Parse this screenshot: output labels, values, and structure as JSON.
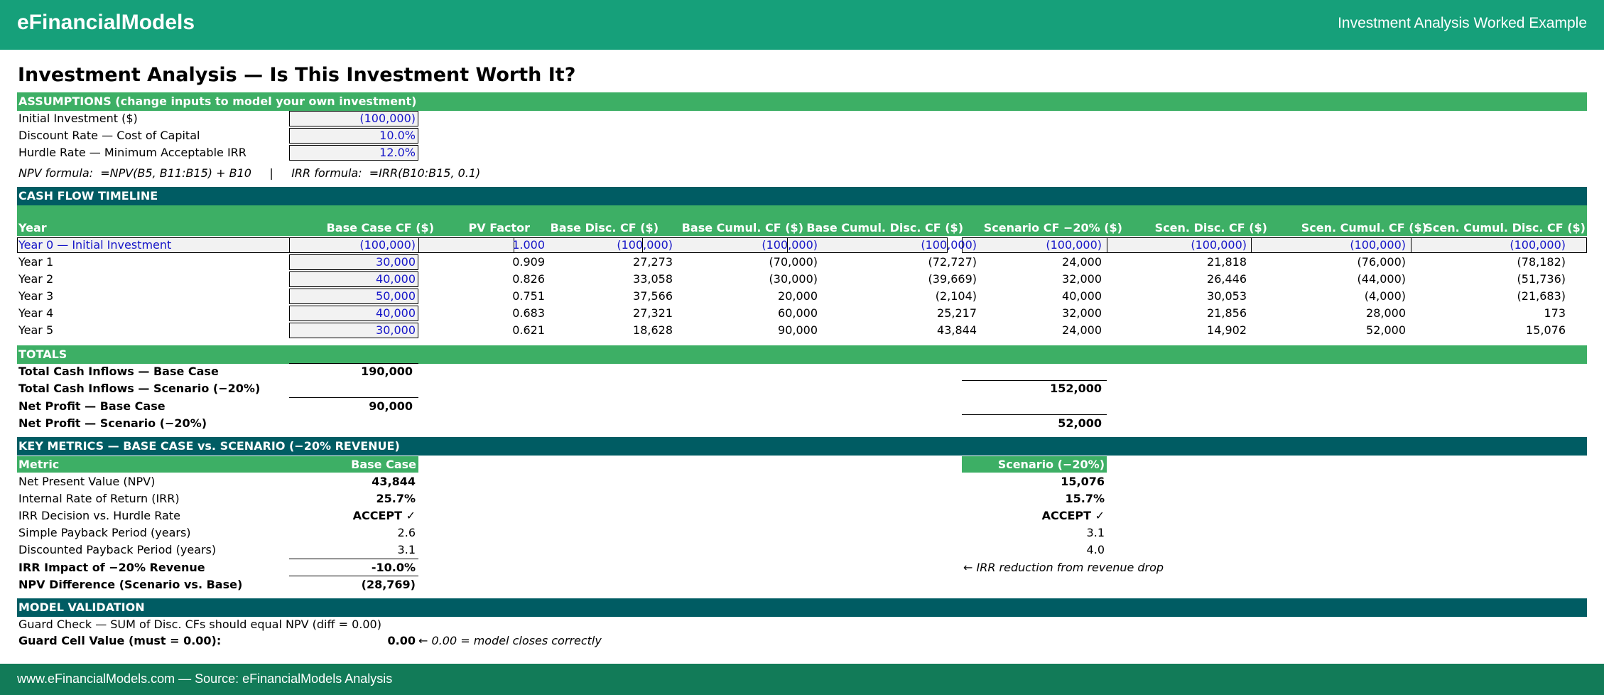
{
  "header": {
    "brand": "eFinancialModels",
    "right_title": "Investment Analysis Worked Example"
  },
  "page_title": "Investment Analysis — Is This Investment Worth It?",
  "assumptions": {
    "band": "ASSUMPTIONS (change inputs to model your own investment)",
    "rows": [
      {
        "label": "Initial Investment ($)",
        "value": "(100,000)"
      },
      {
        "label": "Discount Rate — Cost of Capital",
        "value": "10.0%"
      },
      {
        "label": "Hurdle Rate — Minimum Acceptable IRR",
        "value": "12.0%"
      }
    ],
    "formula_note": "NPV formula:  =NPV(B5, B11:B15) + B10     |     IRR formula:  =IRR(B10:B15, 0.1)"
  },
  "timeline": {
    "band": "CASH FLOW TIMELINE",
    "columns": [
      "Year",
      "Base Case CF ($)",
      "PV Factor",
      "Base Disc. CF ($)",
      "Base Cumul. CF ($)",
      "Base Cumul. Disc. CF ($)",
      "Scenario CF −20% ($)",
      "Scen. Disc. CF ($)",
      "Scen. Cumul. CF ($)",
      "Scen. Cumul. Disc. CF ($)"
    ],
    "rows": [
      [
        "Year 0 — Initial Investment",
        "(100,000)",
        "1.000",
        "(100,000)",
        "(100,000)",
        "(100,000)",
        "(100,000)",
        "(100,000)",
        "(100,000)",
        "(100,000)"
      ],
      [
        "Year 1",
        "30,000",
        "0.909",
        "27,273",
        "(70,000)",
        "(72,727)",
        "24,000",
        "21,818",
        "(76,000)",
        "(78,182)"
      ],
      [
        "Year 2",
        "40,000",
        "0.826",
        "33,058",
        "(30,000)",
        "(39,669)",
        "32,000",
        "26,446",
        "(44,000)",
        "(51,736)"
      ],
      [
        "Year 3",
        "50,000",
        "0.751",
        "37,566",
        "20,000",
        "(2,104)",
        "40,000",
        "30,053",
        "(4,000)",
        "(21,683)"
      ],
      [
        "Year 4",
        "40,000",
        "0.683",
        "27,321",
        "60,000",
        "25,217",
        "32,000",
        "21,856",
        "28,000",
        "173"
      ],
      [
        "Year 5",
        "30,000",
        "0.621",
        "18,628",
        "90,000",
        "43,844",
        "24,000",
        "14,902",
        "52,000",
        "15,076"
      ]
    ]
  },
  "totals": {
    "band": "TOTALS",
    "inflows_base_label": "Total Cash Inflows — Base Case",
    "inflows_base": "190,000",
    "inflows_scen_label": "Total Cash Inflows — Scenario (−20%)",
    "inflows_scen": "152,000",
    "profit_base_label": "Net Profit — Base Case",
    "profit_base": "90,000",
    "profit_scen_label": "Net Profit — Scenario (−20%)",
    "profit_scen": "52,000"
  },
  "metrics": {
    "band": "KEY METRICS — BASE CASE vs. SCENARIO (−20% REVENUE)",
    "hdr_metric": "Metric",
    "hdr_base": "Base Case",
    "hdr_scen": "Scenario (−20%)",
    "rows": [
      {
        "label": "Net Present Value (NPV)",
        "base": "43,844",
        "scen": "15,076"
      },
      {
        "label": "Internal Rate of Return (IRR)",
        "base": "25.7%",
        "scen": "15.7%"
      },
      {
        "label": "IRR Decision vs. Hurdle Rate",
        "base": "ACCEPT ✓",
        "scen": "ACCEPT ✓"
      },
      {
        "label": "Simple Payback Period (years)",
        "base": "2.6",
        "scen": "3.1"
      },
      {
        "label": "Discounted Payback Period (years)",
        "base": "3.1",
        "scen": "4.0"
      }
    ],
    "irr_impact_label": "IRR Impact of −20% Revenue",
    "irr_impact": "-10.0%",
    "irr_note": "← IRR reduction from revenue drop",
    "npv_diff_label": "NPV Difference (Scenario vs. Base)",
    "npv_diff": "(28,769)"
  },
  "validation": {
    "band": "MODEL VALIDATION",
    "guard_check": "Guard Check — SUM of Disc. CFs should equal NPV (diff = 0.00)",
    "guard_label": "Guard Cell Value (must = 0.00):",
    "guard_value": "0.00",
    "guard_note": "← 0.00 = model closes correctly"
  },
  "footer": {
    "text": "www.eFinancialModels.com  —  Source: eFinancialModels Analysis"
  },
  "colors": {
    "header_green": "#16a07a",
    "band_green": "#3daf65",
    "band_teal": "#005c63",
    "input_blue": "#1515c8"
  }
}
